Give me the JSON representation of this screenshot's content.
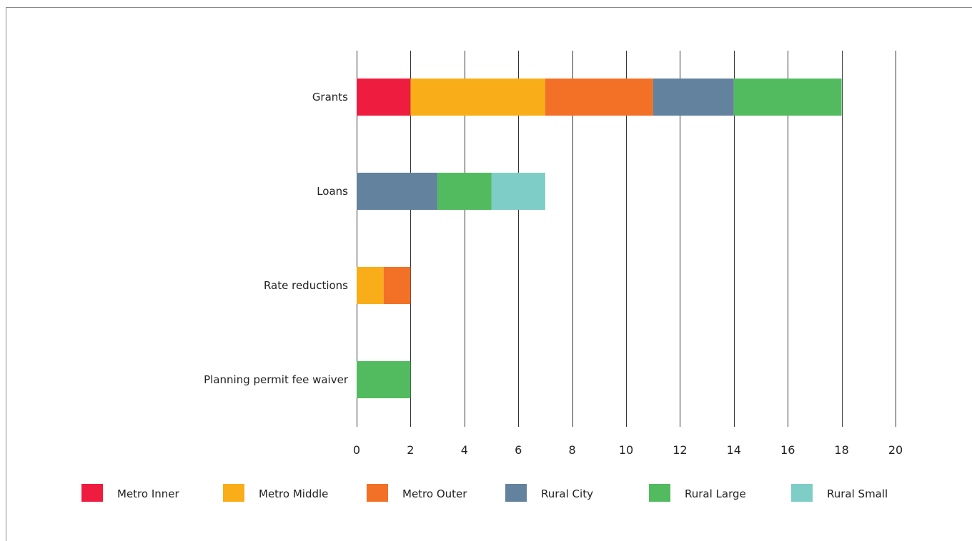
{
  "chart_data": {
    "type": "bar",
    "orientation": "horizontal",
    "stacked": true,
    "categories": [
      "Grants",
      "Loans",
      "Rate reductions",
      "Planning permit fee waiver"
    ],
    "series": [
      {
        "name": "Metro Inner",
        "color": "#ee1d40",
        "values": [
          2,
          0,
          0,
          0
        ]
      },
      {
        "name": "Metro Middle",
        "color": "#f9ad19",
        "values": [
          5,
          0,
          1,
          0
        ]
      },
      {
        "name": "Metro Outer",
        "color": "#f37027",
        "values": [
          4,
          0,
          1,
          0
        ]
      },
      {
        "name": "Rural City",
        "color": "#62829d",
        "values": [
          3,
          3,
          0,
          0
        ]
      },
      {
        "name": "Rural Large",
        "color": "#52bb5f",
        "values": [
          4,
          2,
          0,
          2
        ]
      },
      {
        "name": "Rural Small",
        "color": "#7ecdc6",
        "values": [
          0,
          2,
          0,
          0
        ]
      }
    ],
    "xlim": [
      0,
      20
    ],
    "xticks": [
      "0",
      "2",
      "4",
      "6",
      "8",
      "10",
      "12",
      "14",
      "16",
      "18",
      "20"
    ],
    "grid": "vertical",
    "legend": "bottom",
    "title": "",
    "xlabel": "",
    "ylabel": ""
  }
}
